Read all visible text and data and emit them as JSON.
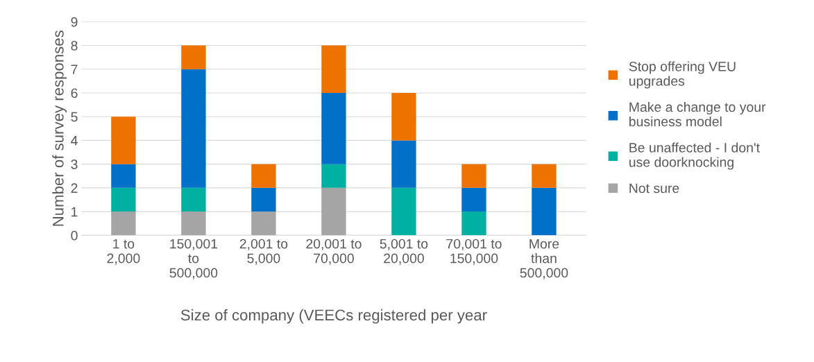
{
  "chart_data": {
    "type": "bar",
    "stacked": true,
    "xlabel": "Size of company (VEECs registered per year",
    "ylabel": "Number of survey responses",
    "categories": [
      "1 to\n2,000",
      "150,001\nto\n500,000",
      "2,001 to\n5,000",
      "20,001 to\n70,000",
      "5,001 to\n20,000",
      "70,001 to\n150,000",
      "More\nthan\n500,000"
    ],
    "series": [
      {
        "name": "Not sure",
        "color": "#a5a5a5",
        "values": [
          1,
          1,
          1,
          2,
          0,
          0,
          0
        ]
      },
      {
        "name": "Be unaffected - I don't\nuse doorknocking",
        "color": "#00b0a0",
        "values": [
          1,
          1,
          0,
          1,
          2,
          1,
          0
        ]
      },
      {
        "name": "Make a change to your\nbusiness model",
        "color": "#0070c8",
        "values": [
          1,
          5,
          1,
          3,
          2,
          1,
          2
        ]
      },
      {
        "name": "Stop offering VEU\nupgrades",
        "color": "#ed7200",
        "values": [
          2,
          1,
          1,
          2,
          2,
          1,
          1
        ]
      }
    ],
    "ylim": [
      0,
      9
    ],
    "yticks": [
      0,
      1,
      2,
      3,
      4,
      5,
      6,
      7,
      8,
      9
    ],
    "grid": "y",
    "legend": "right"
  }
}
